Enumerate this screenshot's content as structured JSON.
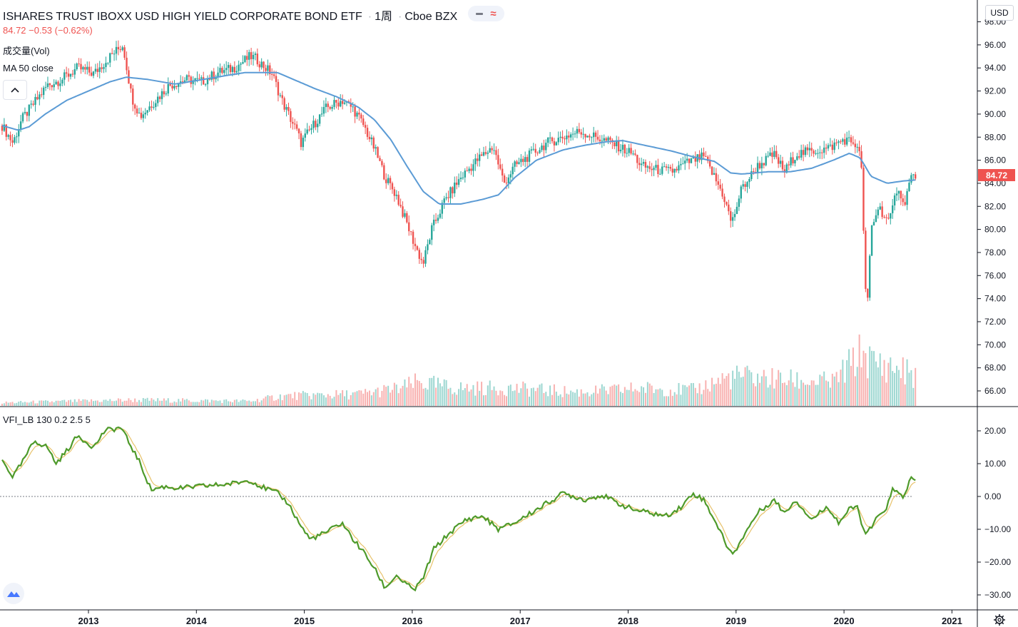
{
  "header": {
    "symbol_title": "ISHARES TRUST IBOXX USD HIGH YIELD CORPORATE BOND ETF",
    "interval": "1周",
    "exchange": "Cboe BZX",
    "price_change": "84.72 −0.53 (−0.62%)",
    "volume_label": "成交量(Vol)",
    "ma_label": "MA 50 close",
    "vfi_label": "VFI_LB 130 0.2 2.5 5",
    "currency": "USD"
  },
  "colors": {
    "up": "#26a69a",
    "down": "#ef5350",
    "ma": "#5b9bd5",
    "vfi": "#4e9a2a",
    "vfi_signal": "#e8c26b",
    "axis": "#131722",
    "last_price_bg": "#ef5350"
  },
  "icons": {
    "collapse": "chevron-up-icon",
    "logo": "tradingview-logo-icon",
    "settings": "gear-icon",
    "minus": "minus-icon",
    "wave": "approx-icon"
  },
  "chart_data": [
    {
      "type": "candlestick",
      "title": "ISHARES TRUST IBOXX USD HIGH YIELD CORPORATE BOND ETF",
      "ylim": [
        64.8,
        98.5
      ],
      "x_start": 2012.2,
      "x_end": 2021.3,
      "y_ticks": [
        "98.00",
        "96.00",
        "94.00",
        "92.00",
        "90.00",
        "88.00",
        "86.00",
        "84.00",
        "82.00",
        "80.00",
        "78.00",
        "76.00",
        "74.00",
        "72.00",
        "70.00",
        "68.00",
        "66.00"
      ],
      "x_ticks": [
        "2013",
        "2014",
        "2015",
        "2016",
        "2017",
        "2018",
        "2019",
        "2020",
        "2021"
      ],
      "last_price": "84.72",
      "close_series": [
        [
          2012.2,
          89.0
        ],
        [
          2012.3,
          87.5
        ],
        [
          2012.38,
          89.5
        ],
        [
          2012.5,
          91.0
        ],
        [
          2012.62,
          92.5
        ],
        [
          2012.75,
          93.0
        ],
        [
          2012.9,
          94.0
        ],
        [
          2013.05,
          93.5
        ],
        [
          2013.2,
          95.0
        ],
        [
          2013.32,
          96.0
        ],
        [
          2013.4,
          91.5
        ],
        [
          2013.48,
          89.8
        ],
        [
          2013.6,
          91.0
        ],
        [
          2013.75,
          92.5
        ],
        [
          2013.9,
          93.0
        ],
        [
          2014.05,
          92.8
        ],
        [
          2014.2,
          93.6
        ],
        [
          2014.35,
          94.0
        ],
        [
          2014.5,
          95.0
        ],
        [
          2014.55,
          94.8
        ],
        [
          2014.7,
          93.5
        ],
        [
          2014.8,
          91.0
        ],
        [
          2014.93,
          88.5
        ],
        [
          2014.97,
          87.5
        ],
        [
          2015.08,
          89.0
        ],
        [
          2015.2,
          90.5
        ],
        [
          2015.35,
          91.2
        ],
        [
          2015.45,
          90.5
        ],
        [
          2015.55,
          89.0
        ],
        [
          2015.65,
          87.0
        ],
        [
          2015.75,
          84.5
        ],
        [
          2015.85,
          83.0
        ],
        [
          2015.95,
          80.5
        ],
        [
          2016.03,
          78.5
        ],
        [
          2016.1,
          77.0
        ],
        [
          2016.18,
          80.0
        ],
        [
          2016.3,
          82.5
        ],
        [
          2016.45,
          84.5
        ],
        [
          2016.6,
          86.0
        ],
        [
          2016.75,
          87.2
        ],
        [
          2016.85,
          84.0
        ],
        [
          2016.95,
          85.5
        ],
        [
          2017.1,
          86.5
        ],
        [
          2017.25,
          87.5
        ],
        [
          2017.4,
          88.0
        ],
        [
          2017.55,
          88.5
        ],
        [
          2017.7,
          88.0
        ],
        [
          2017.85,
          87.5
        ],
        [
          2017.95,
          87.0
        ],
        [
          2018.05,
          86.5
        ],
        [
          2018.12,
          85.5
        ],
        [
          2018.25,
          85.2
        ],
        [
          2018.4,
          85.0
        ],
        [
          2018.55,
          85.8
        ],
        [
          2018.7,
          86.3
        ],
        [
          2018.8,
          84.5
        ],
        [
          2018.88,
          83.0
        ],
        [
          2018.96,
          80.5
        ],
        [
          2019.05,
          83.5
        ],
        [
          2019.2,
          85.5
        ],
        [
          2019.35,
          86.5
        ],
        [
          2019.45,
          85.0
        ],
        [
          2019.55,
          86.5
        ],
        [
          2019.7,
          86.8
        ],
        [
          2019.85,
          87.0
        ],
        [
          2020.0,
          87.8
        ],
        [
          2020.1,
          87.5
        ],
        [
          2020.16,
          86.0
        ],
        [
          2020.19,
          77.0
        ],
        [
          2020.21,
          72.0
        ],
        [
          2020.25,
          80.0
        ],
        [
          2020.32,
          82.0
        ],
        [
          2020.42,
          80.5
        ],
        [
          2020.5,
          84.0
        ],
        [
          2020.55,
          82.0
        ],
        [
          2020.62,
          84.5
        ],
        [
          2020.68,
          84.72
        ]
      ],
      "ma_series": [
        [
          2012.2,
          89.0
        ],
        [
          2012.35,
          88.6
        ],
        [
          2012.45,
          88.9
        ],
        [
          2012.6,
          90.0
        ],
        [
          2012.8,
          91.2
        ],
        [
          2013.0,
          92.0
        ],
        [
          2013.2,
          92.8
        ],
        [
          2013.35,
          93.2
        ],
        [
          2013.55,
          93.0
        ],
        [
          2013.8,
          92.6
        ],
        [
          2014.0,
          92.9
        ],
        [
          2014.25,
          93.3
        ],
        [
          2014.45,
          93.6
        ],
        [
          2014.6,
          93.6
        ],
        [
          2014.75,
          93.6
        ],
        [
          2014.9,
          93.0
        ],
        [
          2015.1,
          92.2
        ],
        [
          2015.3,
          91.5
        ],
        [
          2015.5,
          90.6
        ],
        [
          2015.65,
          89.5
        ],
        [
          2015.8,
          87.8
        ],
        [
          2015.95,
          85.5
        ],
        [
          2016.1,
          83.3
        ],
        [
          2016.25,
          82.2
        ],
        [
          2016.45,
          82.2
        ],
        [
          2016.65,
          82.6
        ],
        [
          2016.8,
          83.0
        ],
        [
          2016.95,
          84.5
        ],
        [
          2017.15,
          86.0
        ],
        [
          2017.4,
          86.9
        ],
        [
          2017.6,
          87.3
        ],
        [
          2017.8,
          87.6
        ],
        [
          2017.95,
          87.7
        ],
        [
          2018.15,
          87.3
        ],
        [
          2018.4,
          86.8
        ],
        [
          2018.6,
          86.3
        ],
        [
          2018.8,
          85.9
        ],
        [
          2018.95,
          84.9
        ],
        [
          2019.05,
          84.8
        ],
        [
          2019.3,
          85.0
        ],
        [
          2019.5,
          85.0
        ],
        [
          2019.7,
          85.3
        ],
        [
          2019.9,
          86.0
        ],
        [
          2020.05,
          86.6
        ],
        [
          2020.15,
          86.2
        ],
        [
          2020.25,
          84.6
        ],
        [
          2020.4,
          84.0
        ],
        [
          2020.55,
          84.2
        ],
        [
          2020.68,
          84.3
        ]
      ]
    },
    {
      "type": "bar",
      "title": "成交量(Vol)",
      "volume_series": [
        [
          2012.2,
          0.8
        ],
        [
          2013.4,
          1.5
        ],
        [
          2014.5,
          1.2
        ],
        [
          2014.8,
          2.5
        ],
        [
          2015.5,
          3.0
        ],
        [
          2015.9,
          4.5
        ],
        [
          2016.05,
          6.0
        ],
        [
          2016.4,
          4.5
        ],
        [
          2016.9,
          4.5
        ],
        [
          2017.5,
          3.5
        ],
        [
          2017.9,
          4.0
        ],
        [
          2018.1,
          4.5
        ],
        [
          2018.6,
          4.0
        ],
        [
          2018.9,
          7.0
        ],
        [
          2019.05,
          7.5
        ],
        [
          2019.5,
          6.5
        ],
        [
          2019.9,
          6.0
        ],
        [
          2020.18,
          14.0
        ],
        [
          2020.25,
          11.0
        ],
        [
          2020.5,
          9.5
        ],
        [
          2020.68,
          7.5
        ]
      ]
    },
    {
      "type": "line",
      "title": "VFI_LB 130 0.2 2.5 5",
      "ylim": [
        -33,
        24
      ],
      "y_ticks": [
        "20.00",
        "10.00",
        "0.00",
        "−10.00",
        "−20.00",
        "−30.00"
      ],
      "vfi_series": [
        [
          2012.2,
          11.0
        ],
        [
          2012.3,
          6.0
        ],
        [
          2012.38,
          10.0
        ],
        [
          2012.5,
          17.0
        ],
        [
          2012.62,
          15.0
        ],
        [
          2012.7,
          10.0
        ],
        [
          2012.8,
          14.0
        ],
        [
          2012.9,
          18.5
        ],
        [
          2013.05,
          15.0
        ],
        [
          2013.15,
          20.0
        ],
        [
          2013.3,
          21.0
        ],
        [
          2013.4,
          15.0
        ],
        [
          2013.48,
          10.0
        ],
        [
          2013.58,
          2.0
        ],
        [
          2013.7,
          3.0
        ],
        [
          2013.85,
          2.5
        ],
        [
          2014.0,
          3.0
        ],
        [
          2014.2,
          3.5
        ],
        [
          2014.35,
          4.0
        ],
        [
          2014.5,
          5.0
        ],
        [
          2014.6,
          3.0
        ],
        [
          2014.75,
          1.0
        ],
        [
          2014.85,
          -2.0
        ],
        [
          2014.95,
          -8.0
        ],
        [
          2015.05,
          -13.0
        ],
        [
          2015.2,
          -11.0
        ],
        [
          2015.35,
          -8.0
        ],
        [
          2015.45,
          -13.0
        ],
        [
          2015.55,
          -17.0
        ],
        [
          2015.65,
          -22.0
        ],
        [
          2015.75,
          -28.0
        ],
        [
          2015.85,
          -24.0
        ],
        [
          2015.95,
          -27.0
        ],
        [
          2016.02,
          -28.5
        ],
        [
          2016.1,
          -25.0
        ],
        [
          2016.2,
          -16.0
        ],
        [
          2016.35,
          -11.0
        ],
        [
          2016.5,
          -7.0
        ],
        [
          2016.65,
          -6.0
        ],
        [
          2016.8,
          -10.0
        ],
        [
          2016.95,
          -8.0
        ],
        [
          2017.15,
          -4.0
        ],
        [
          2017.4,
          1.0
        ],
        [
          2017.6,
          -1.0
        ],
        [
          2017.75,
          0.5
        ],
        [
          2017.9,
          -2.0
        ],
        [
          2018.05,
          -4.0
        ],
        [
          2018.2,
          -5.0
        ],
        [
          2018.35,
          -6.0
        ],
        [
          2018.5,
          -3.0
        ],
        [
          2018.6,
          1.0
        ],
        [
          2018.7,
          -1.0
        ],
        [
          2018.8,
          -7.0
        ],
        [
          2018.9,
          -14.0
        ],
        [
          2018.97,
          -18.0
        ],
        [
          2019.05,
          -13.0
        ],
        [
          2019.2,
          -5.0
        ],
        [
          2019.35,
          -1.0
        ],
        [
          2019.45,
          -5.0
        ],
        [
          2019.55,
          -1.0
        ],
        [
          2019.7,
          -7.0
        ],
        [
          2019.85,
          -3.0
        ],
        [
          2019.95,
          -8.0
        ],
        [
          2020.05,
          -4.0
        ],
        [
          2020.12,
          -3.0
        ],
        [
          2020.2,
          -12.0
        ],
        [
          2020.3,
          -7.0
        ],
        [
          2020.4,
          -3.0
        ],
        [
          2020.45,
          2.0
        ],
        [
          2020.55,
          0.0
        ],
        [
          2020.62,
          5.5
        ],
        [
          2020.68,
          4.5
        ]
      ]
    }
  ]
}
